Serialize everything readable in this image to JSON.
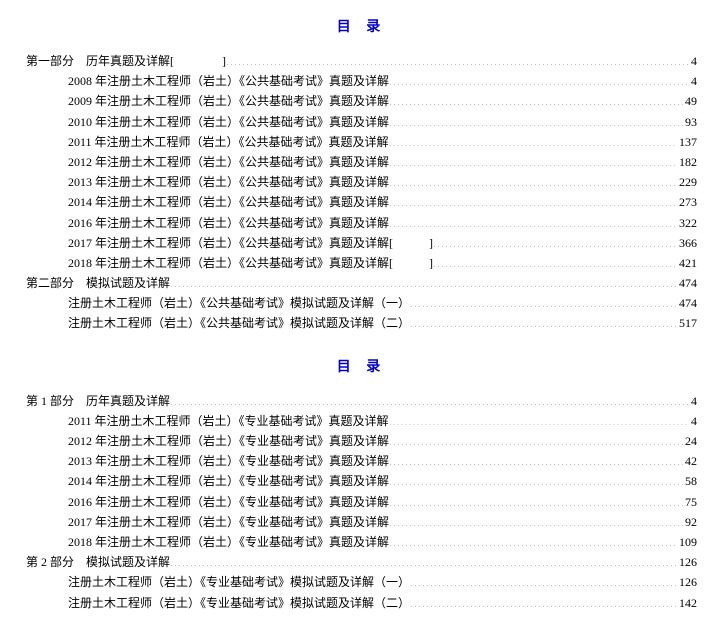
{
  "toc1": {
    "title": "目 录",
    "entries": [
      {
        "level": 0,
        "label": "第一部分　历年真题及详解[　　　　]",
        "page": "4"
      },
      {
        "level": 1,
        "label": "2008 年注册土木工程师（岩土）《公共基础考试》真题及详解",
        "page": "4"
      },
      {
        "level": 1,
        "label": "2009 年注册土木工程师（岩土）《公共基础考试》真题及详解",
        "page": "49"
      },
      {
        "level": 1,
        "label": "2010 年注册土木工程师（岩土）《公共基础考试》真题及详解",
        "page": "93"
      },
      {
        "level": 1,
        "label": "2011 年注册土木工程师（岩土）《公共基础考试》真题及详解",
        "page": "137"
      },
      {
        "level": 1,
        "label": "2012 年注册土木工程师（岩土）《公共基础考试》真题及详解",
        "page": "182"
      },
      {
        "level": 1,
        "label": "2013 年注册土木工程师（岩土）《公共基础考试》真题及详解",
        "page": "229"
      },
      {
        "level": 1,
        "label": "2014 年注册土木工程师（岩土）《公共基础考试》真题及详解",
        "page": "273"
      },
      {
        "level": 1,
        "label": "2016 年注册土木工程师（岩土）《公共基础考试》真题及详解",
        "page": "322"
      },
      {
        "level": 1,
        "label": "2017 年注册土木工程师（岩土）《公共基础考试》真题及详解[　　　]",
        "page": "366"
      },
      {
        "level": 1,
        "label": "2018 年注册土木工程师（岩土）《公共基础考试》真题及详解[　　　]",
        "page": "421"
      },
      {
        "level": 0,
        "label": "第二部分　模拟试题及详解",
        "page": "474"
      },
      {
        "level": 1,
        "label": "注册土木工程师（岩土）《公共基础考试》模拟试题及详解（一）",
        "page": "474"
      },
      {
        "level": 1,
        "label": "注册土木工程师（岩土）《公共基础考试》模拟试题及详解（二）",
        "page": "517"
      }
    ]
  },
  "toc2": {
    "title": "目 录",
    "entries": [
      {
        "level": 0,
        "label": "第 1 部分　历年真题及详解",
        "page": "4"
      },
      {
        "level": 1,
        "label": "2011 年注册土木工程师（岩土）《专业基础考试》真题及详解",
        "page": "4"
      },
      {
        "level": 1,
        "label": "2012 年注册土木工程师（岩土）《专业基础考试》真题及详解",
        "page": "24"
      },
      {
        "level": 1,
        "label": "2013 年注册土木工程师（岩土）《专业基础考试》真题及详解",
        "page": "42"
      },
      {
        "level": 1,
        "label": "2014 年注册土木工程师（岩土）《专业基础考试》真题及详解",
        "page": "58"
      },
      {
        "level": 1,
        "label": "2016 年注册土木工程师（岩土）《专业基础考试》真题及详解",
        "page": "75"
      },
      {
        "level": 1,
        "label": "2017 年注册土木工程师（岩土）《专业基础考试》真题及详解",
        "page": "92"
      },
      {
        "level": 1,
        "label": "2018 年注册土木工程师（岩土）《专业基础考试》真题及详解",
        "page": "109"
      },
      {
        "level": 0,
        "label": "第 2 部分　模拟试题及详解",
        "page": "126"
      },
      {
        "level": 1,
        "label": "注册土木工程师（岩土）《专业基础考试》模拟试题及详解（一）",
        "page": "126"
      },
      {
        "level": 1,
        "label": "注册土木工程师（岩土）《专业基础考试》模拟试题及详解（二）",
        "page": "142"
      }
    ]
  }
}
